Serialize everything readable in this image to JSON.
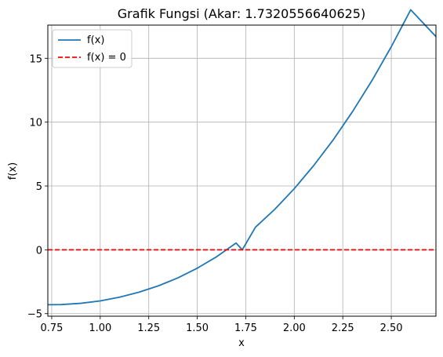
{
  "chart_data": {
    "type": "line",
    "title": "Grafik Fungsi (Akar: 1.7320556640625)",
    "xlabel": "x",
    "ylabel": "f(x)",
    "xlim": [
      0.73,
      2.73
    ],
    "ylim": [
      -5.2,
      17.6
    ],
    "x_ticks": [
      0.75,
      1.0,
      1.25,
      1.5,
      1.75,
      2.0,
      2.25,
      2.5
    ],
    "x_tick_labels": [
      "0.75",
      "1.00",
      "1.25",
      "1.50",
      "1.75",
      "2.00",
      "2.25",
      "2.50"
    ],
    "y_ticks": [
      -5,
      0,
      5,
      10,
      15
    ],
    "y_tick_labels": [
      "−5",
      "0",
      "5",
      "10",
      "15"
    ],
    "grid": true,
    "legend_position": "top-left",
    "series": [
      {
        "name": "f(x)",
        "style": "solid",
        "color": "#1f77b4",
        "x": [
          0.73,
          0.8,
          0.9,
          1.0,
          1.1,
          1.2,
          1.3,
          1.4,
          1.5,
          1.6,
          1.7,
          1.7320556640625,
          1.8,
          1.9,
          2.0,
          2.1,
          2.2,
          2.3,
          2.4,
          2.5,
          2.6,
          2.73
        ],
        "y": [
          -4.3,
          -4.29,
          -4.19,
          -4.0,
          -3.71,
          -3.32,
          -2.82,
          -2.2,
          -1.44,
          -0.54,
          0.53,
          0.0,
          1.77,
          3.18,
          4.79,
          6.6,
          8.6,
          10.82,
          13.25,
          15.91,
          18.8,
          16.7
        ]
      },
      {
        "name": "f(x) = 0",
        "style": "dashed",
        "color": "#ff0000",
        "x": [
          0.73,
          2.73
        ],
        "y": [
          0,
          0
        ]
      }
    ]
  }
}
